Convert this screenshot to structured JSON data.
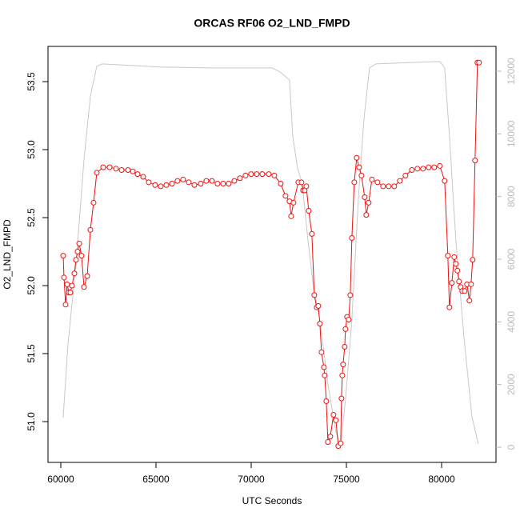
{
  "chart_data": {
    "type": "line",
    "title": "ORCAS RF06 O2_LND_FMPD",
    "x_label": "UTC Seconds",
    "y_label": "O2_LND_FMPD",
    "xlim": [
      59328,
      82857
    ],
    "xticks": [
      60000,
      65000,
      70000,
      75000,
      80000
    ],
    "ylim": [
      50.7,
      53.759
    ],
    "yticks": [
      {
        "value": 51,
        "label": "51.0"
      },
      51.5,
      {
        "value": 52,
        "label": "52.0"
      },
      52.5,
      {
        "value": 53,
        "label": "53.0"
      },
      53.5
    ],
    "y2lim": [
      -485,
      12792
    ],
    "y2ticks": [
      0,
      2000,
      4000,
      6000,
      8000,
      10000,
      12000
    ],
    "y2_tick_color": "#bbbbbb",
    "series": [
      {
        "color": "#ee1111",
        "markers": true,
        "x": [
          60126,
          60168,
          60252,
          60336,
          60420,
          60504,
          60588,
          60714,
          60798,
          60882,
          60966,
          61092,
          61218,
          61386,
          61554,
          61722,
          61890,
          62226,
          62562,
          62898,
          63192,
          63528,
          63780,
          64032,
          64326,
          64620,
          64956,
          65250,
          65544,
          65838,
          66132,
          66426,
          66720,
          67014,
          67350,
          67644,
          67938,
          68232,
          68526,
          68820,
          69114,
          69408,
          69702,
          69996,
          70290,
          70584,
          70920,
          71214,
          71550,
          71802,
          72012,
          72096,
          72222,
          72474,
          72642,
          72726,
          72810,
          72894,
          73020,
          73188,
          73314,
          73440,
          73524,
          73608,
          73692,
          73818,
          73860,
          73944,
          74028,
          74154,
          74322,
          74448,
          74574,
          74700,
          74742,
          74784,
          74826,
          74910,
          74952,
          75036,
          75120,
          75204,
          75288,
          75414,
          75540,
          75666,
          75792,
          75960,
          76044,
          76170,
          76338,
          76632,
          76926,
          77220,
          77514,
          77808,
          78102,
          78438,
          78732,
          79026,
          79320,
          79614,
          79908,
          80160,
          80328,
          80412,
          80538,
          80664,
          80748,
          80832,
          80916,
          81000,
          81084,
          81210,
          81336,
          81462,
          81546,
          81630,
          81756,
          81882,
          81966
        ],
        "values": [
          52.22,
          52.06,
          51.86,
          52.01,
          51.95,
          51.95,
          52.0,
          52.09,
          52.19,
          52.25,
          52.31,
          52.22,
          51.99,
          52.07,
          52.41,
          52.61,
          52.83,
          52.87,
          52.87,
          52.86,
          52.85,
          52.85,
          52.84,
          52.82,
          52.8,
          52.76,
          52.74,
          52.73,
          52.74,
          52.75,
          52.77,
          52.78,
          52.76,
          52.74,
          52.75,
          52.77,
          52.77,
          52.75,
          52.75,
          52.75,
          52.77,
          52.79,
          52.81,
          52.82,
          52.82,
          52.82,
          52.82,
          52.81,
          52.75,
          52.66,
          52.62,
          52.51,
          52.61,
          52.76,
          52.76,
          52.7,
          52.7,
          52.73,
          52.55,
          52.38,
          51.93,
          51.84,
          51.85,
          51.72,
          51.51,
          51.4,
          51.34,
          51.15,
          50.85,
          50.89,
          51.05,
          51.01,
          50.82,
          50.84,
          51.17,
          51.34,
          51.42,
          51.55,
          51.68,
          51.77,
          51.75,
          51.93,
          52.35,
          52.76,
          52.94,
          52.87,
          52.81,
          52.65,
          52.52,
          52.61,
          52.78,
          52.76,
          52.73,
          52.73,
          52.73,
          52.77,
          52.81,
          52.85,
          52.86,
          52.86,
          52.87,
          52.87,
          52.88,
          52.77,
          52.22,
          51.84,
          52.02,
          52.21,
          52.16,
          52.11,
          52.03,
          51.99,
          51.96,
          51.96,
          52.01,
          51.89,
          52.01,
          52.19,
          52.92,
          53.64,
          53.64
        ]
      },
      {
        "color": "#c8c8c8",
        "axis": "y2",
        "markers": false,
        "x": [
          60126,
          60378,
          60798,
          61218,
          61554,
          61890,
          62184,
          65208,
          67728,
          71088,
          71508,
          72012,
          72180,
          72432,
          72684,
          72978,
          73272,
          73608,
          74028,
          74448,
          74700,
          74952,
          75288,
          75624,
          75918,
          76212,
          76548,
          79908,
          80160,
          80412,
          80748,
          81168,
          81588,
          81924
        ],
        "values": [
          945,
          3295,
          5849,
          9170,
          11213,
          12158,
          12235,
          12133,
          12107,
          12107,
          11980,
          11724,
          9936,
          8914,
          8404,
          6616,
          5083,
          4061,
          2018,
          485,
          102,
          1507,
          4061,
          7893,
          10447,
          12107,
          12235,
          12311,
          12107,
          9936,
          6616,
          3550,
          996,
          102
        ]
      }
    ]
  }
}
